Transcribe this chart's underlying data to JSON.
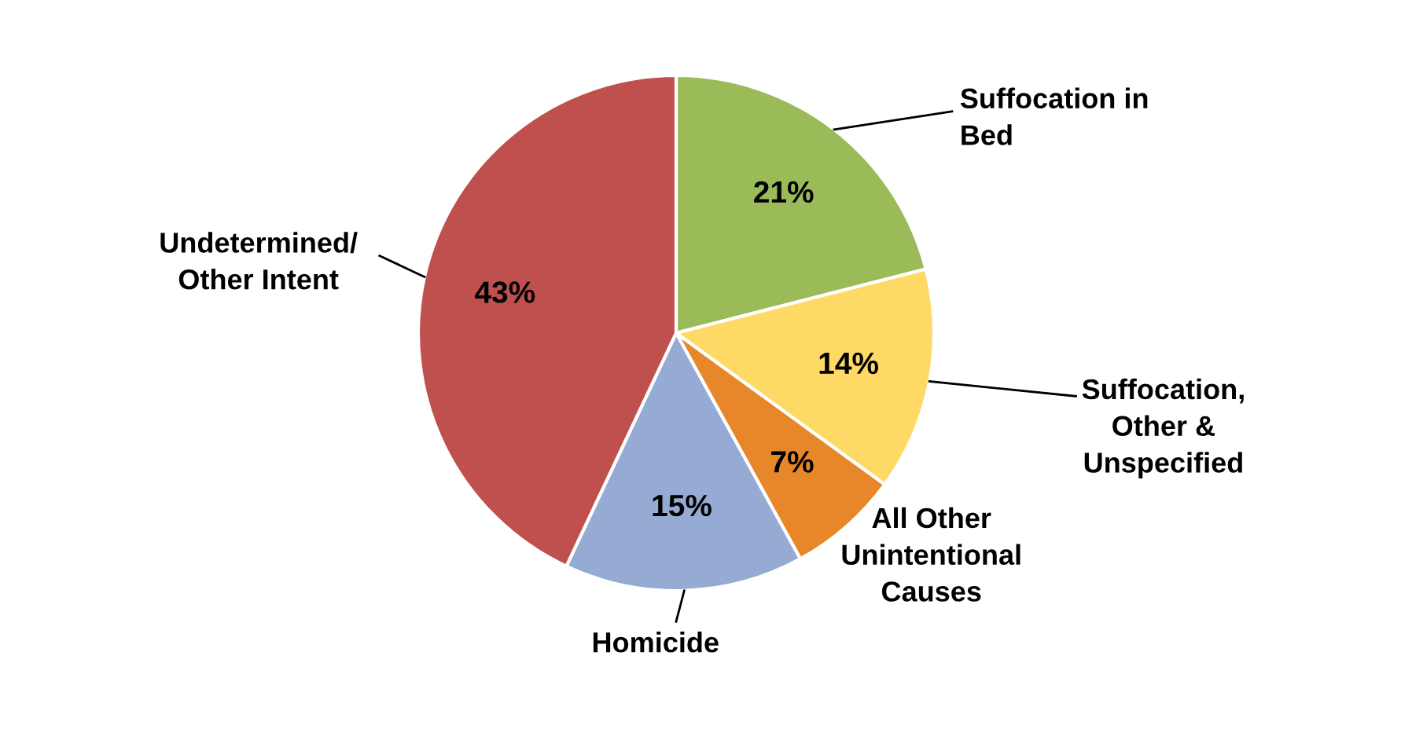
{
  "chart_data": {
    "type": "pie",
    "categories": [
      "Suffocation in\nBed",
      "Suffocation,\nOther &\nUnspecified",
      "All Other\nUnintentional\nCauses",
      "Homicide",
      "Undetermined/\nOther Intent"
    ],
    "values": [
      21,
      14,
      7,
      15,
      43
    ],
    "colors": [
      "#9bbb59",
      "#ffd966",
      "#e8862a",
      "#95abd3",
      "#c0504d"
    ],
    "value_labels": [
      "21%",
      "14%",
      "7%",
      "15%",
      "43%"
    ]
  }
}
